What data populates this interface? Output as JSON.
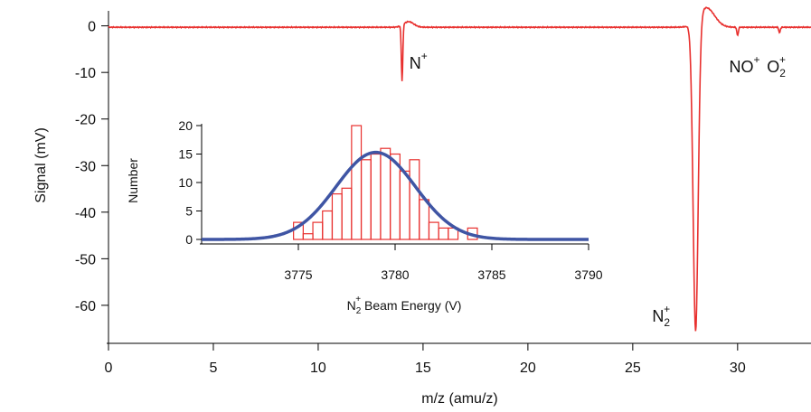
{
  "chart_data": [
    {
      "type": "line",
      "xlabel": "m/z (amu/z)",
      "ylabel": "Signal (mV)",
      "xlim": [
        0,
        33.5
      ],
      "ylim": [
        -67,
        4
      ],
      "xticks": [
        0,
        5,
        10,
        15,
        20,
        25,
        30
      ],
      "yticks": [
        0,
        -10,
        -20,
        -30,
        -40,
        -50,
        -60
      ],
      "grid": false,
      "line_color": "#e8302e",
      "baseline": -0.3,
      "peaks": [
        {
          "label": "N",
          "charge": "+",
          "sub": "",
          "x": 14.0,
          "min": -12,
          "max": 1.2
        },
        {
          "label": "N",
          "charge": "+",
          "sub": "2",
          "x": 28.0,
          "min": -67,
          "max": 4.2
        },
        {
          "label": "NO",
          "charge": "+",
          "sub": "",
          "x": 30.0,
          "min": -1.8,
          "max": 0
        },
        {
          "label": "O",
          "charge": "+",
          "sub": "2",
          "x": 32.0,
          "min": -1.2,
          "max": 0
        }
      ]
    },
    {
      "type": "bar",
      "title": "",
      "xlabel_main": "N",
      "xlabel_sub": "2",
      "xlabel_sup": "+",
      "xlabel_rest": " Beam Energy (V)",
      "ylabel": "Number",
      "xlim": [
        3770,
        3790
      ],
      "ylim": [
        0,
        20
      ],
      "xticks": [
        3775,
        3780,
        3785,
        3790
      ],
      "yticks": [
        0,
        5,
        10,
        15,
        20
      ],
      "bar_color": "#e8302e",
      "fit_color": "#3f55a4",
      "bin_width": 0.5,
      "bins": [
        {
          "x": 3775.0,
          "count": 3
        },
        {
          "x": 3775.5,
          "count": 1
        },
        {
          "x": 3776.0,
          "count": 3
        },
        {
          "x": 3776.5,
          "count": 5
        },
        {
          "x": 3777.0,
          "count": 8
        },
        {
          "x": 3777.5,
          "count": 9
        },
        {
          "x": 3778.0,
          "count": 20
        },
        {
          "x": 3778.5,
          "count": 14
        },
        {
          "x": 3779.0,
          "count": 15
        },
        {
          "x": 3779.5,
          "count": 16
        },
        {
          "x": 3780.0,
          "count": 15
        },
        {
          "x": 3780.5,
          "count": 12
        },
        {
          "x": 3781.0,
          "count": 14
        },
        {
          "x": 3781.5,
          "count": 7
        },
        {
          "x": 3782.0,
          "count": 3
        },
        {
          "x": 3782.5,
          "count": 2
        },
        {
          "x": 3783.0,
          "count": 2
        },
        {
          "x": 3783.5,
          "count": 0
        },
        {
          "x": 3784.0,
          "count": 2
        }
      ],
      "fit": {
        "type": "gaussian",
        "amplitude": 15.3,
        "center": 3779.0,
        "sigma": 2.05
      }
    }
  ]
}
